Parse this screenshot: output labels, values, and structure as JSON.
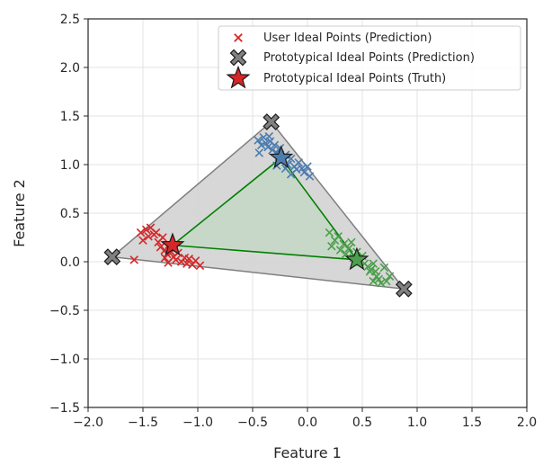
{
  "chart_data": {
    "type": "scatter",
    "xlabel": "Feature 1",
    "ylabel": "Feature 2",
    "xlim": [
      -2.0,
      2.0
    ],
    "ylim": [
      -1.5,
      2.5
    ],
    "xticks": [
      -2.0,
      -1.5,
      -1.0,
      -0.5,
      0.0,
      0.5,
      1.0,
      1.5,
      2.0
    ],
    "yticks": [
      -1.5,
      -1.0,
      -0.5,
      0.0,
      0.5,
      1.0,
      1.5,
      2.0,
      2.5
    ],
    "xtick_labels": [
      "−2.0",
      "−1.5",
      "−1.0",
      "−0.5",
      "0.0",
      "0.5",
      "1.0",
      "1.5",
      "2.0"
    ],
    "ytick_labels": [
      "−1.5",
      "−1.0",
      "−0.5",
      "0.0",
      "0.5",
      "1.0",
      "1.5",
      "2.0",
      "2.5"
    ],
    "grid": true,
    "legend_position": "upper-right",
    "legend": [
      {
        "label": "User Ideal Points (Prediction)",
        "marker": "x",
        "color": "#d62728"
      },
      {
        "label": "Prototypical Ideal Points (Prediction)",
        "marker": "X",
        "color": "#808080"
      },
      {
        "label": "Prototypical Ideal Points (Truth)",
        "marker": "star",
        "color": "#d62728"
      }
    ],
    "hull_prediction": {
      "points": [
        [
          -0.33,
          1.44
        ],
        [
          0.88,
          -0.28
        ],
        [
          -1.78,
          0.05
        ]
      ],
      "fill": "#d3d3d3",
      "stroke": "#7f7f7f"
    },
    "hull_truth": {
      "points": [
        [
          -0.24,
          1.07
        ],
        [
          0.45,
          0.02
        ],
        [
          -1.23,
          0.17
        ]
      ],
      "fill": "#c6d8c6",
      "stroke": "#008000"
    },
    "user_points": [
      {
        "cluster": "blue",
        "color": "#4c7db0",
        "points": [
          [
            -0.45,
            1.25
          ],
          [
            -0.42,
            1.2
          ],
          [
            -0.4,
            1.28
          ],
          [
            -0.38,
            1.22
          ],
          [
            -0.36,
            1.18
          ],
          [
            -0.34,
            1.24
          ],
          [
            -0.32,
            1.15
          ],
          [
            -0.3,
            1.2
          ],
          [
            -0.28,
            1.12
          ],
          [
            -0.26,
            1.08
          ],
          [
            -0.25,
            1.17
          ],
          [
            -0.22,
            1.05
          ],
          [
            -0.2,
            1.1
          ],
          [
            -0.18,
            1.0
          ],
          [
            -0.15,
            1.06
          ],
          [
            -0.12,
            0.98
          ],
          [
            -0.1,
            0.95
          ],
          [
            -0.08,
            1.02
          ],
          [
            -0.05,
            0.96
          ],
          [
            -0.03,
            0.92
          ],
          [
            0.0,
            0.98
          ],
          [
            0.02,
            0.88
          ],
          [
            -0.28,
            0.99
          ],
          [
            -0.2,
            0.96
          ],
          [
            -0.35,
            1.29
          ],
          [
            -0.44,
            1.12
          ],
          [
            -0.15,
            0.9
          ]
        ]
      },
      {
        "cluster": "red",
        "color": "#d62728",
        "points": [
          [
            -1.58,
            0.02
          ],
          [
            -1.52,
            0.3
          ],
          [
            -1.5,
            0.22
          ],
          [
            -1.47,
            0.33
          ],
          [
            -1.45,
            0.26
          ],
          [
            -1.43,
            0.35
          ],
          [
            -1.4,
            0.28
          ],
          [
            -1.38,
            0.3
          ],
          [
            -1.36,
            0.2
          ],
          [
            -1.34,
            0.15
          ],
          [
            -1.32,
            0.25
          ],
          [
            -1.3,
            0.12
          ],
          [
            -1.28,
            0.08
          ],
          [
            -1.26,
            0.18
          ],
          [
            -1.24,
            0.1
          ],
          [
            -1.22,
            0.05
          ],
          [
            -1.2,
            0.02
          ],
          [
            -1.18,
            0.09
          ],
          [
            -1.15,
            0.0
          ],
          [
            -1.12,
            0.04
          ],
          [
            -1.1,
            -0.02
          ],
          [
            -1.08,
            0.03
          ],
          [
            -1.05,
            -0.03
          ],
          [
            -1.02,
            0.01
          ],
          [
            -0.98,
            -0.04
          ],
          [
            -1.3,
            0.04
          ],
          [
            -1.27,
            -0.01
          ]
        ]
      },
      {
        "cluster": "green",
        "color": "#4c9f4c",
        "points": [
          [
            0.2,
            0.3
          ],
          [
            0.22,
            0.16
          ],
          [
            0.25,
            0.22
          ],
          [
            0.28,
            0.26
          ],
          [
            0.3,
            0.12
          ],
          [
            0.33,
            0.18
          ],
          [
            0.35,
            0.08
          ],
          [
            0.38,
            0.14
          ],
          [
            0.4,
            0.2
          ],
          [
            0.42,
            0.04
          ],
          [
            0.45,
            0.1
          ],
          [
            0.48,
            0.0
          ],
          [
            0.5,
            0.06
          ],
          [
            0.52,
            -0.02
          ],
          [
            0.55,
            -0.05
          ],
          [
            0.58,
            -0.08
          ],
          [
            0.6,
            -0.02
          ],
          [
            0.62,
            -0.1
          ],
          [
            0.63,
            -0.15
          ],
          [
            0.65,
            -0.18
          ],
          [
            0.67,
            -0.22
          ],
          [
            0.7,
            -0.06
          ],
          [
            0.72,
            -0.2
          ],
          [
            0.75,
            -0.15
          ],
          [
            0.57,
            -0.1
          ],
          [
            0.6,
            -0.2
          ]
        ]
      }
    ],
    "prototype_prediction": {
      "color": "#808080",
      "points": [
        [
          -0.33,
          1.44
        ],
        [
          0.88,
          -0.28
        ],
        [
          -1.78,
          0.05
        ]
      ]
    },
    "prototype_truth": [
      {
        "x": -0.24,
        "y": 1.07,
        "color": "#4c7db0"
      },
      {
        "x": 0.45,
        "y": 0.02,
        "color": "#4c9f4c"
      },
      {
        "x": -1.23,
        "y": 0.17,
        "color": "#d62728"
      }
    ]
  }
}
